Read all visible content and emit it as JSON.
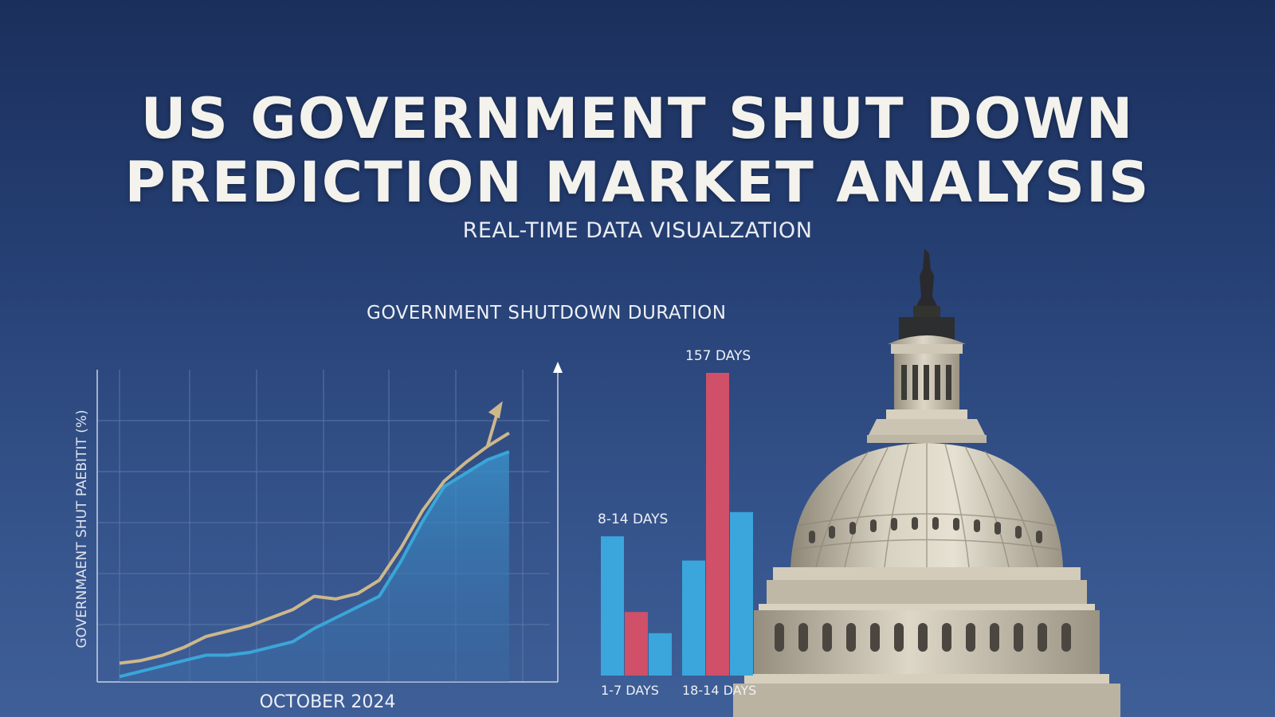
{
  "header": {
    "title_line1": "US GOVERNMENT SHUT DOWN",
    "title_line2": "PREDICTION MARKET ANALYSIS",
    "subtitle": "REAL-TIME DATA VISUALZATION"
  },
  "section_title": "GOVERNMENT SHUTDOWN DURATION",
  "colors": {
    "background": "#253f73",
    "line_gold": "#cdb88c",
    "line_blue": "#3aa6d8",
    "bar_blue": "#3aa6dc",
    "bar_red": "#cf5068"
  },
  "chart_data": [
    {
      "type": "line",
      "title": "",
      "xlabel": "OCTOBER 2024",
      "ylabel": "GOVERNMAENT SHUT PAEBITIT (%)",
      "grid": true,
      "legend": "none",
      "x": [
        0,
        1,
        2,
        3,
        4,
        5,
        6,
        7,
        8,
        9,
        10,
        11,
        12,
        13,
        14,
        15,
        16,
        17,
        18
      ],
      "xlim": [
        0,
        19
      ],
      "ylim": [
        0,
        100
      ],
      "annotation": "arrow",
      "series": [
        {
          "values": [
            7,
            8,
            10,
            13,
            17,
            19,
            21,
            24,
            27,
            32,
            31,
            33,
            38,
            50,
            64,
            75,
            82,
            88,
            93
          ]
        },
        {
          "values": [
            2,
            4,
            6,
            8,
            10,
            10,
            11,
            13,
            15,
            20,
            24,
            28,
            32,
            45,
            60,
            73,
            78,
            83,
            86
          ]
        }
      ]
    },
    {
      "type": "bar",
      "title": "",
      "ylim": [
        0,
        100
      ],
      "groups": [
        {
          "label": "1-7 DAYS",
          "values": [
            46,
            21,
            14
          ],
          "colors": [
            "bar_blue",
            "bar_red",
            "bar_blue"
          ]
        },
        {
          "label": "18-14 DAYS",
          "values": [
            38,
            100,
            54
          ],
          "colors": [
            "bar_blue",
            "bar_red",
            "bar_blue"
          ]
        }
      ],
      "data_labels": [
        {
          "text": "8-14 DAYS",
          "group": 0
        },
        {
          "text": "157 DAYS",
          "group": 1
        }
      ]
    }
  ]
}
